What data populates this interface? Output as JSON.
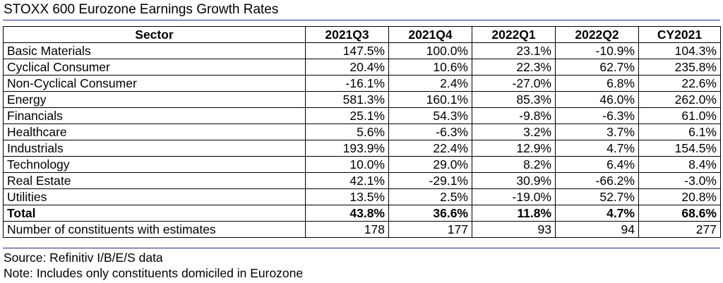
{
  "title": "STOXX 600 Eurozone Earnings Growth Rates",
  "table": {
    "headers": [
      "Sector",
      "2021Q3",
      "2021Q4",
      "2022Q1",
      "2022Q2",
      "CY2021"
    ],
    "rows": [
      [
        "Basic Materials",
        "147.5%",
        "100.0%",
        "23.1%",
        "-10.9%",
        "104.3%"
      ],
      [
        "Cyclical Consumer",
        "20.4%",
        "10.6%",
        "22.3%",
        "62.7%",
        "235.8%"
      ],
      [
        "Non-Cyclical Consumer",
        "-16.1%",
        "2.4%",
        "-27.0%",
        "6.8%",
        "22.6%"
      ],
      [
        "Energy",
        "581.3%",
        "160.1%",
        "85.3%",
        "46.0%",
        "262.0%"
      ],
      [
        "Financials",
        "25.1%",
        "54.3%",
        "-9.8%",
        "-6.3%",
        "61.0%"
      ],
      [
        "Healthcare",
        "5.6%",
        "-6.3%",
        "3.2%",
        "3.7%",
        "6.1%"
      ],
      [
        "Industrials",
        "193.9%",
        "22.4%",
        "12.9%",
        "4.7%",
        "154.5%"
      ],
      [
        "Technology",
        "10.0%",
        "29.0%",
        "8.2%",
        "6.4%",
        "8.4%"
      ],
      [
        "Real Estate",
        "42.1%",
        "-29.1%",
        "30.9%",
        "-66.2%",
        "-3.0%"
      ],
      [
        "Utilities",
        "13.5%",
        "2.5%",
        "-19.0%",
        "52.7%",
        "20.8%"
      ]
    ],
    "total": [
      "Total",
      "43.8%",
      "36.6%",
      "11.8%",
      "4.7%",
      "68.6%"
    ],
    "constituents": [
      "Number of constituents with estimates",
      "178",
      "177",
      "93",
      "94",
      "277"
    ]
  },
  "notes": {
    "source": "Source: Refinitiv I/B/E/S data",
    "note": "Note: Includes only constituents domiciled in Eurozone"
  }
}
